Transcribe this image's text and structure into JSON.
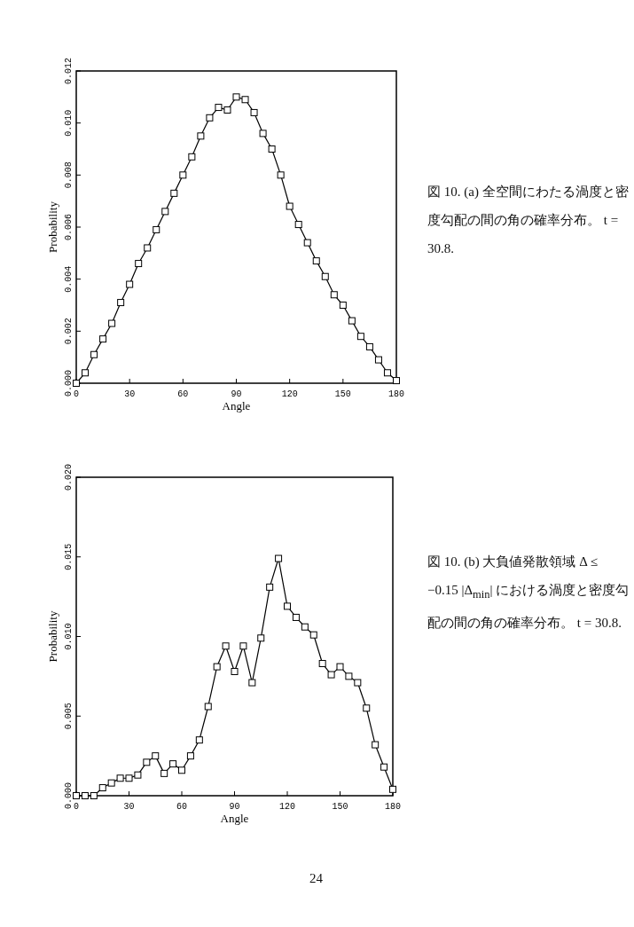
{
  "chart_data": [
    {
      "type": "line",
      "xlabel": "Angle",
      "ylabel": "Probability",
      "xlim": [
        0,
        180
      ],
      "xticks": [
        0,
        30,
        60,
        90,
        120,
        150,
        180
      ],
      "ylim": [
        0,
        0.012
      ],
      "yticks": [
        {
          "value": 0,
          "label": "0.000"
        },
        {
          "value": 0.002,
          "label": "0.002"
        },
        {
          "value": 0.004,
          "label": "0.004"
        },
        {
          "value": 0.006,
          "label": "0.006"
        },
        {
          "value": 0.008,
          "label": "0.008"
        },
        {
          "value": 0.01,
          "label": "0.010"
        },
        {
          "value": 0.012,
          "label": "0.012"
        }
      ],
      "grid": false,
      "marker": "square",
      "line_style": "solid",
      "series": [
        {
          "color": "#000000",
          "x": [
            0,
            5,
            10,
            15,
            20,
            25,
            30,
            35,
            40,
            45,
            50,
            55,
            60,
            65,
            70,
            75,
            80,
            85,
            90,
            95,
            100,
            105,
            110,
            115,
            120,
            125,
            130,
            135,
            140,
            145,
            150,
            155,
            160,
            165,
            170,
            175,
            180
          ],
          "values": [
            0.0,
            0.0004,
            0.0011,
            0.0017,
            0.0023,
            0.0031,
            0.0038,
            0.0046,
            0.0052,
            0.0059,
            0.0066,
            0.0073,
            0.008,
            0.0087,
            0.0095,
            0.0102,
            0.0106,
            0.0105,
            0.011,
            0.0109,
            0.0104,
            0.0096,
            0.009,
            0.008,
            0.0068,
            0.0061,
            0.0054,
            0.0047,
            0.0041,
            0.0034,
            0.003,
            0.0024,
            0.0018,
            0.0014,
            0.0009,
            0.0004,
            0.0001
          ]
        }
      ],
      "annotations": [
        "図 10. (a) 全空間にわたる渦度と密度勾配の間の角の確率分布。 t = 30.8."
      ]
    },
    {
      "type": "line",
      "xlabel": "Angle",
      "ylabel": "Probability",
      "xlim": [
        0,
        180
      ],
      "xticks": [
        0,
        30,
        60,
        90,
        120,
        150,
        180
      ],
      "ylim": [
        0,
        0.02
      ],
      "yticks": [
        {
          "value": 0,
          "label": "0.000"
        },
        {
          "value": 0.005,
          "label": "0.005"
        },
        {
          "value": 0.01,
          "label": "0.010"
        },
        {
          "value": 0.015,
          "label": "0.015"
        },
        {
          "value": 0.02,
          "label": "0.020"
        }
      ],
      "grid": false,
      "marker": "square",
      "line_style": "solid",
      "series": [
        {
          "color": "#000000",
          "x": [
            0,
            5,
            10,
            15,
            20,
            25,
            30,
            35,
            40,
            45,
            50,
            55,
            60,
            65,
            70,
            75,
            80,
            85,
            90,
            95,
            100,
            105,
            110,
            115,
            120,
            125,
            130,
            135,
            140,
            145,
            150,
            155,
            160,
            165,
            170,
            175,
            180
          ],
          "values": [
            0.0,
            0.0,
            0.0,
            0.0005,
            0.0008,
            0.0011,
            0.0011,
            0.0013,
            0.0021,
            0.0025,
            0.0014,
            0.002,
            0.0016,
            0.0025,
            0.0035,
            0.0056,
            0.0081,
            0.0094,
            0.0078,
            0.0094,
            0.0071,
            0.0099,
            0.0131,
            0.0149,
            0.0119,
            0.0112,
            0.0106,
            0.0101,
            0.0083,
            0.0076,
            0.0081,
            0.0075,
            0.0071,
            0.0055,
            0.0032,
            0.0018,
            0.0004
          ]
        }
      ],
      "annotations": [
        "図 10. (b) 大負値発散領域 Δ ≤ −0.15 |Δ$_{min}$| における渦度と密度勾配の間の角の確率分布。 t = 30.8.",
        "24"
      ]
    }
  ]
}
